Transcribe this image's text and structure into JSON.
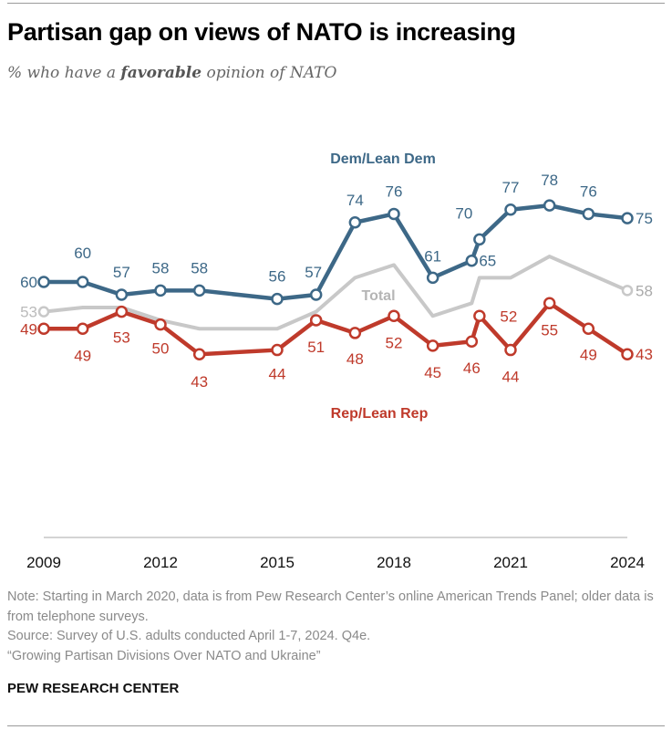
{
  "title": "Partisan gap on views of NATO is increasing",
  "subtitle": {
    "pre": "% who have a ",
    "bold": "favorable",
    "post": " opinion of NATO"
  },
  "chart_data": {
    "type": "line",
    "x": [
      2009,
      2010,
      2011,
      2012,
      2013,
      2015,
      2016,
      2017,
      2018,
      2019,
      2020.0,
      2020.2,
      2021,
      2022,
      2023,
      2024
    ],
    "xticks": [
      "2009",
      "2012",
      "2015",
      "2018",
      "2021",
      "2024"
    ],
    "xlim": [
      2009,
      2024
    ],
    "ylim": [
      40,
      80
    ],
    "grid": false,
    "series": [
      {
        "name": "Dem/Lean Dem",
        "color": "#3d6887",
        "values": [
          60,
          60,
          57,
          58,
          58,
          56,
          57,
          74,
          76,
          61,
          65,
          70,
          77,
          78,
          76,
          75
        ]
      },
      {
        "name": "Total",
        "color": "#c8c8c8",
        "values": [
          53,
          54,
          54,
          51,
          49,
          49,
          53,
          61,
          64,
          52,
          55,
          61,
          61,
          66,
          62,
          58
        ],
        "labeled": [
          "53",
          "58"
        ]
      },
      {
        "name": "Rep/Lean Rep",
        "color": "#bf3a2b",
        "values": [
          49,
          49,
          53,
          50,
          43,
          44,
          51,
          48,
          52,
          45,
          46,
          52,
          44,
          55,
          49,
          43
        ]
      }
    ]
  },
  "notes": [
    "Note: Starting in March 2020, data is from Pew Research Center’s online American Trends Panel; older data is from telephone surveys.",
    "Source: Survey of U.S. adults conducted April 1-7, 2024. Q4e.",
    "“Growing Partisan Divisions Over NATO and Ukraine”"
  ],
  "brand": "PEW RESEARCH CENTER"
}
